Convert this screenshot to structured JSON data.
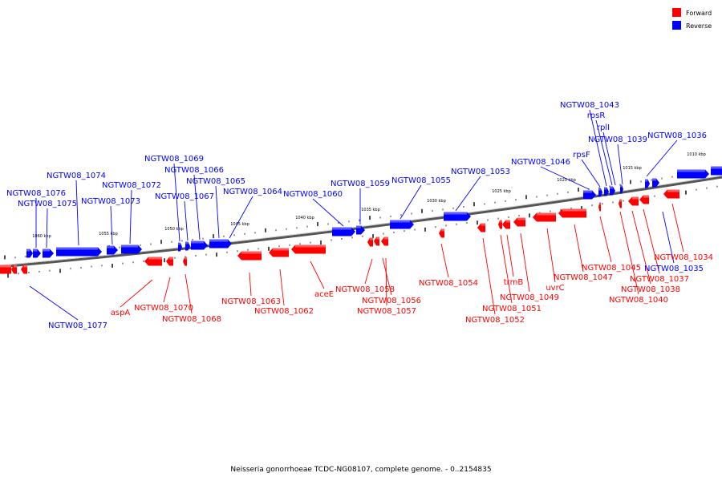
{
  "colors": {
    "forward": "#ff0000",
    "reverse": "#0000ff",
    "axis": "#555555"
  },
  "legend": {
    "forward_label": "Forward",
    "reverse_label": "Reverse"
  },
  "caption": "Neisseria gonorrhoeae TCDC-NG08107, complete genome. - 0..2154835",
  "scale_labels": [
    "1060 kbp",
    "1055 kbp",
    "1050 kbp",
    "1045 kbp",
    "1040 kbp",
    "1035 kbp",
    "1030 kbp",
    "1025 kbp",
    "1020 kbp",
    "1015 kbp",
    "1010 kbp"
  ],
  "forward_genes": [
    "aspA",
    "NGTW08_1070",
    "NGTW08_1068",
    "NGTW08_1063",
    "NGTW08_1062",
    "aceE",
    "NGTW08_1058",
    "NGTW08_1056",
    "NGTW08_1057",
    "NGTW08_1054",
    "NGTW08_1052",
    "NGTW08_1051",
    "trmB",
    "NGTW08_1049",
    "uvrC",
    "NGTW08_1047",
    "NGTW08_1045",
    "NGTW08_1040",
    "NGTW08_1038",
    "NGTW08_1037",
    "NGTW08_1034"
  ],
  "reverse_genes": [
    "NGTW08_1077",
    "NGTW08_1076",
    "NGTW08_1075",
    "NGTW08_1074",
    "NGTW08_1073",
    "NGTW08_1072",
    "NGTW08_1069",
    "NGTW08_1066",
    "NGTW08_1067",
    "NGTW08_1065",
    "NGTW08_1064",
    "NGTW08_1060",
    "NGTW08_1059",
    "NGTW08_1055",
    "NGTW08_1053",
    "NGTW08_1046",
    "rpsF",
    "NGTW08_1043",
    "rpsR",
    "rplI",
    "NGTW08_1039",
    "NGTW08_1036",
    "NGTW08_1035"
  ]
}
